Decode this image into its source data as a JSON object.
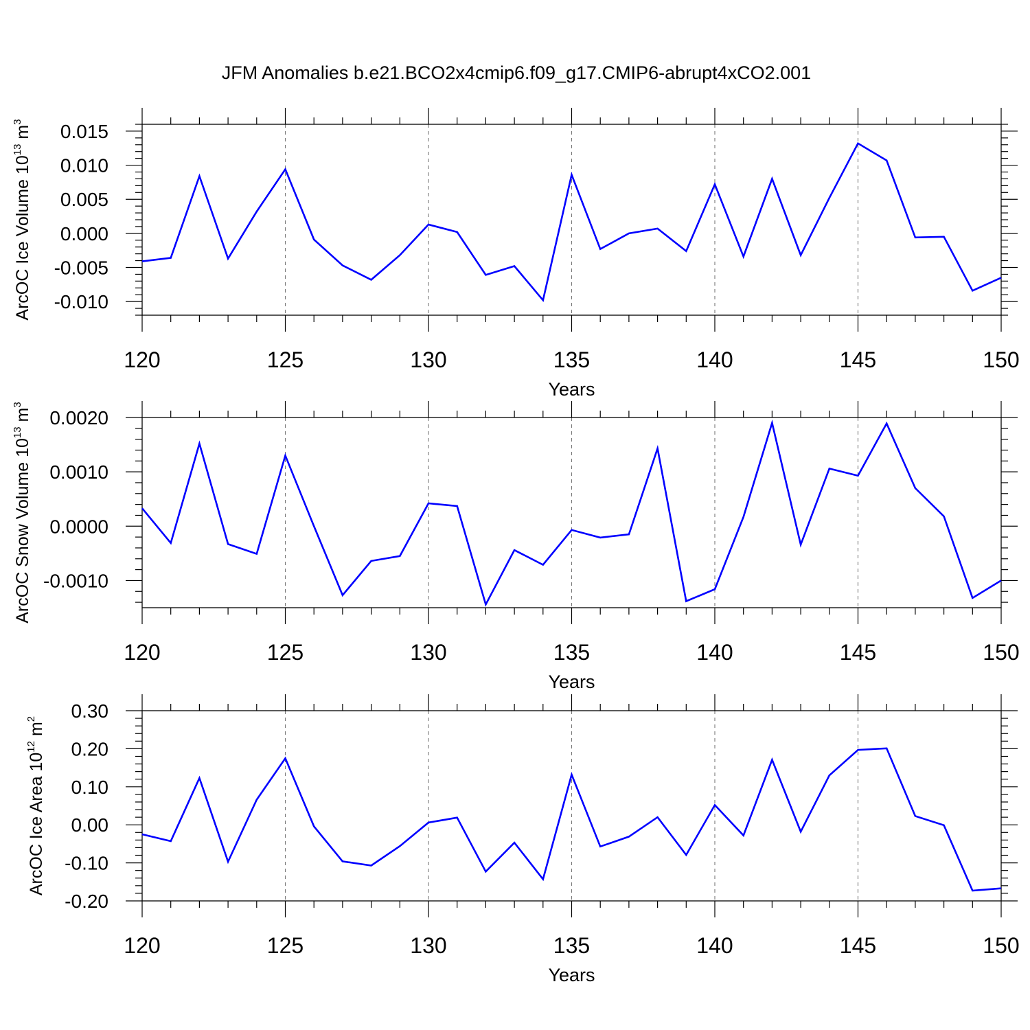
{
  "title": "JFM Anomalies b.e21.BCO2x4cmip6.f09_g17.CMIP6-abrupt4xCO2.001",
  "colors": {
    "line": "#0000ff",
    "grid": "#777777",
    "axis": "#000000"
  },
  "chart_data": [
    {
      "type": "line",
      "xlabel": "Years",
      "ylabel": {
        "main": "ArcOC Ice Volume 10",
        "exp": "13",
        "unit": " m",
        "unit_exp": "3"
      },
      "xlim": [
        120,
        150
      ],
      "ylim": [
        -0.012,
        0.016
      ],
      "x_ticks": [
        "120",
        "125",
        "130",
        "135",
        "140",
        "145",
        "150"
      ],
      "y_ticks": [
        {
          "v": -0.01,
          "label": "-0.010"
        },
        {
          "v": -0.005,
          "label": "-0.005"
        },
        {
          "v": 0.0,
          "label": "0.000"
        },
        {
          "v": 0.005,
          "label": "0.005"
        },
        {
          "v": 0.01,
          "label": "0.010"
        },
        {
          "v": 0.015,
          "label": "0.015"
        }
      ],
      "grid": "x-dashed",
      "x": [
        120,
        121,
        122,
        123,
        124,
        125,
        126,
        127,
        128,
        129,
        130,
        131,
        132,
        133,
        134,
        135,
        136,
        137,
        138,
        139,
        140,
        141,
        142,
        143,
        144,
        145,
        146,
        147,
        148,
        149,
        150
      ],
      "values": [
        -0.0041,
        -0.0036,
        0.0084,
        -0.0037,
        0.0032,
        0.0094,
        -0.0009,
        -0.0047,
        -0.0068,
        -0.0032,
        0.0013,
        0.0002,
        -0.0061,
        -0.0048,
        -0.0098,
        0.0086,
        -0.0023,
        0.0,
        0.0007,
        -0.0026,
        0.0072,
        -0.0034,
        0.008,
        -0.0032,
        0.0052,
        0.0132,
        0.0107,
        -0.0006,
        -0.0005,
        -0.0084,
        -0.0065
      ]
    },
    {
      "type": "line",
      "xlabel": "Years",
      "ylabel": {
        "main": "ArcOC Snow Volume 10",
        "exp": "13",
        "unit": " m",
        "unit_exp": "3"
      },
      "xlim": [
        120,
        150
      ],
      "ylim": [
        -0.0015,
        0.002
      ],
      "x_ticks": [
        "120",
        "125",
        "130",
        "135",
        "140",
        "145",
        "150"
      ],
      "y_ticks": [
        {
          "v": -0.001,
          "label": "-0.0010"
        },
        {
          "v": 0.0,
          "label": "0.0000"
        },
        {
          "v": 0.001,
          "label": "0.0010"
        },
        {
          "v": 0.002,
          "label": "0.0020"
        }
      ],
      "grid": "x-dashed",
      "x": [
        120,
        121,
        122,
        123,
        124,
        125,
        126,
        127,
        128,
        129,
        130,
        131,
        132,
        133,
        134,
        135,
        136,
        137,
        138,
        139,
        140,
        141,
        142,
        143,
        144,
        145,
        146,
        147,
        148,
        149,
        150
      ],
      "values": [
        0.00033,
        -0.00031,
        0.00152,
        -0.00033,
        -0.00051,
        0.0013,
        0.0,
        -0.00127,
        -0.00064,
        -0.00055,
        0.00042,
        0.00037,
        -0.00144,
        -0.00044,
        -0.00071,
        -7e-05,
        -0.00021,
        -0.00015,
        0.00143,
        -0.00138,
        -0.00116,
        0.00017,
        0.0019,
        -0.00034,
        0.00106,
        0.00093,
        0.00189,
        0.0007,
        0.00018,
        -0.00132,
        -0.001
      ]
    },
    {
      "type": "line",
      "xlabel": "Years",
      "ylabel": {
        "main": "ArcOC Ice Area 10",
        "exp": "12",
        "unit": " m",
        "unit_exp": "2"
      },
      "xlim": [
        120,
        150
      ],
      "ylim": [
        -0.2,
        0.3
      ],
      "x_ticks": [
        "120",
        "125",
        "130",
        "135",
        "140",
        "145",
        "150"
      ],
      "y_ticks": [
        {
          "v": -0.2,
          "label": "-0.20"
        },
        {
          "v": -0.1,
          "label": "-0.10"
        },
        {
          "v": 0.0,
          "label": "0.00"
        },
        {
          "v": 0.1,
          "label": "0.10"
        },
        {
          "v": 0.2,
          "label": "0.20"
        },
        {
          "v": 0.3,
          "label": "0.30"
        }
      ],
      "grid": "x-dashed",
      "x": [
        120,
        121,
        122,
        123,
        124,
        125,
        126,
        127,
        128,
        129,
        130,
        131,
        132,
        133,
        134,
        135,
        136,
        137,
        138,
        139,
        140,
        141,
        142,
        143,
        144,
        145,
        146,
        147,
        148,
        149,
        150
      ],
      "values": [
        -0.025,
        -0.043,
        0.123,
        -0.097,
        0.066,
        0.175,
        -0.004,
        -0.096,
        -0.107,
        -0.056,
        0.006,
        0.019,
        -0.123,
        -0.047,
        -0.143,
        0.132,
        -0.057,
        -0.031,
        0.02,
        -0.079,
        0.052,
        -0.028,
        0.171,
        -0.018,
        0.13,
        0.197,
        0.201,
        0.023,
        -0.001,
        -0.173,
        -0.167
      ]
    }
  ]
}
